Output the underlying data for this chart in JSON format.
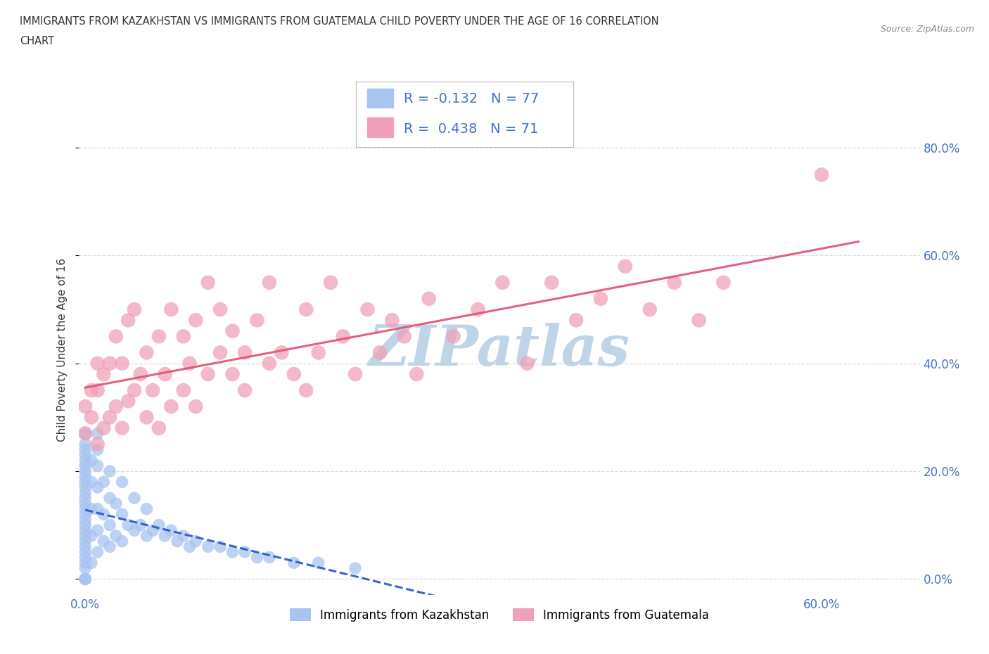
{
  "title_line1": "IMMIGRANTS FROM KAZAKHSTAN VS IMMIGRANTS FROM GUATEMALA CHILD POVERTY UNDER THE AGE OF 16 CORRELATION",
  "title_line2": "CHART",
  "source_text": "Source: ZipAtlas.com",
  "ylabel": "Child Poverty Under the Age of 16",
  "series1_label": "Immigrants from Kazakhstan",
  "series2_label": "Immigrants from Guatemala",
  "series1_color": "#a8c4f0",
  "series2_color": "#f0a0b8",
  "series1_line_color": "#2255cc",
  "series2_line_color": "#e05070",
  "R1": -0.132,
  "N1": 77,
  "R2": 0.438,
  "N2": 71,
  "yticks": [
    0.0,
    0.2,
    0.4,
    0.6,
    0.8
  ],
  "ytick_labels": [
    "0.0%",
    "20.0%",
    "40.0%",
    "60.0%",
    "80.0%"
  ],
  "xtick_vals": [
    0.0,
    0.6
  ],
  "xtick_labels": [
    "0.0%",
    "60.0%"
  ],
  "xlim": [
    -0.005,
    0.68
  ],
  "ylim": [
    -0.03,
    0.88
  ],
  "background_color": "#ffffff",
  "watermark": "ZIPatlas",
  "watermark_color": "#c0d4e8",
  "grid_color": "#d8d8d8",
  "series1_x": [
    0.0,
    0.0,
    0.0,
    0.0,
    0.0,
    0.0,
    0.0,
    0.0,
    0.0,
    0.0,
    0.0,
    0.0,
    0.0,
    0.0,
    0.0,
    0.0,
    0.0,
    0.0,
    0.0,
    0.0,
    0.0,
    0.0,
    0.0,
    0.0,
    0.0,
    0.0,
    0.0,
    0.0,
    0.0,
    0.0,
    0.005,
    0.005,
    0.005,
    0.005,
    0.005,
    0.01,
    0.01,
    0.01,
    0.01,
    0.01,
    0.01,
    0.01,
    0.015,
    0.015,
    0.015,
    0.02,
    0.02,
    0.02,
    0.02,
    0.025,
    0.025,
    0.03,
    0.03,
    0.03,
    0.035,
    0.04,
    0.04,
    0.045,
    0.05,
    0.05,
    0.055,
    0.06,
    0.065,
    0.07,
    0.075,
    0.08,
    0.085,
    0.09,
    0.1,
    0.11,
    0.12,
    0.13,
    0.14,
    0.15,
    0.17,
    0.19,
    0.22
  ],
  "series1_y": [
    0.0,
    0.0,
    0.0,
    0.0,
    0.0,
    0.02,
    0.03,
    0.04,
    0.05,
    0.06,
    0.07,
    0.08,
    0.09,
    0.1,
    0.11,
    0.12,
    0.13,
    0.14,
    0.15,
    0.16,
    0.17,
    0.18,
    0.19,
    0.2,
    0.21,
    0.22,
    0.23,
    0.24,
    0.25,
    0.27,
    0.03,
    0.08,
    0.13,
    0.18,
    0.22,
    0.05,
    0.09,
    0.13,
    0.17,
    0.21,
    0.24,
    0.27,
    0.07,
    0.12,
    0.18,
    0.06,
    0.1,
    0.15,
    0.2,
    0.08,
    0.14,
    0.07,
    0.12,
    0.18,
    0.1,
    0.09,
    0.15,
    0.1,
    0.08,
    0.13,
    0.09,
    0.1,
    0.08,
    0.09,
    0.07,
    0.08,
    0.06,
    0.07,
    0.06,
    0.06,
    0.05,
    0.05,
    0.04,
    0.04,
    0.03,
    0.03,
    0.02
  ],
  "series2_x": [
    0.0,
    0.0,
    0.005,
    0.005,
    0.01,
    0.01,
    0.01,
    0.015,
    0.015,
    0.02,
    0.02,
    0.025,
    0.025,
    0.03,
    0.03,
    0.035,
    0.035,
    0.04,
    0.04,
    0.045,
    0.05,
    0.05,
    0.055,
    0.06,
    0.06,
    0.065,
    0.07,
    0.07,
    0.08,
    0.08,
    0.085,
    0.09,
    0.09,
    0.1,
    0.1,
    0.11,
    0.11,
    0.12,
    0.12,
    0.13,
    0.13,
    0.14,
    0.15,
    0.15,
    0.16,
    0.17,
    0.18,
    0.18,
    0.19,
    0.2,
    0.21,
    0.22,
    0.23,
    0.24,
    0.25,
    0.26,
    0.27,
    0.28,
    0.3,
    0.32,
    0.34,
    0.36,
    0.38,
    0.4,
    0.42,
    0.44,
    0.46,
    0.48,
    0.5,
    0.52,
    0.6
  ],
  "series2_y": [
    0.27,
    0.32,
    0.3,
    0.35,
    0.25,
    0.35,
    0.4,
    0.28,
    0.38,
    0.3,
    0.4,
    0.32,
    0.45,
    0.28,
    0.4,
    0.33,
    0.48,
    0.35,
    0.5,
    0.38,
    0.3,
    0.42,
    0.35,
    0.28,
    0.45,
    0.38,
    0.32,
    0.5,
    0.35,
    0.45,
    0.4,
    0.32,
    0.48,
    0.38,
    0.55,
    0.42,
    0.5,
    0.38,
    0.46,
    0.42,
    0.35,
    0.48,
    0.4,
    0.55,
    0.42,
    0.38,
    0.35,
    0.5,
    0.42,
    0.55,
    0.45,
    0.38,
    0.5,
    0.42,
    0.48,
    0.45,
    0.38,
    0.52,
    0.45,
    0.5,
    0.55,
    0.4,
    0.55,
    0.48,
    0.52,
    0.58,
    0.5,
    0.55,
    0.48,
    0.55,
    0.75
  ]
}
